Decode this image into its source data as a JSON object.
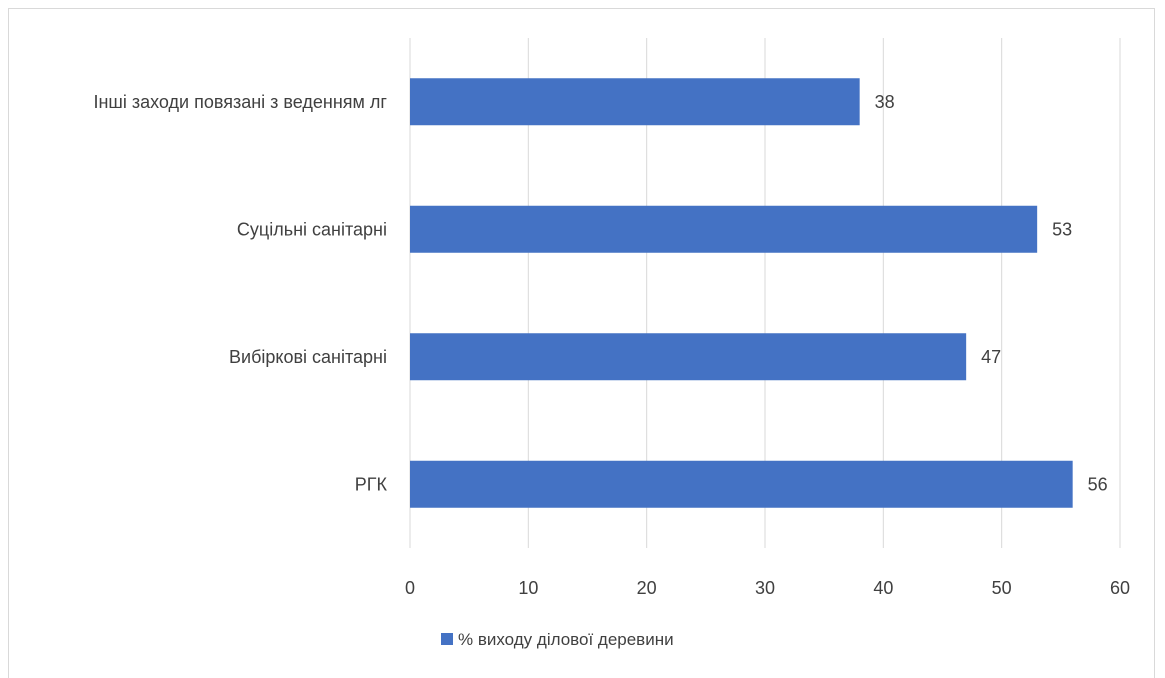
{
  "chart_data": {
    "type": "bar",
    "orientation": "horizontal",
    "categories": [
      "Інші заходи повязані з веденням лг",
      "Суцільні санітарні",
      "Вибіркові санітарні",
      "РГК"
    ],
    "series": [
      {
        "name": "% виходу ділової деревини",
        "values": [
          38,
          53,
          47,
          56
        ]
      }
    ],
    "xlim": [
      0,
      60
    ],
    "x_ticks": [
      0,
      10,
      20,
      30,
      40,
      50,
      60
    ],
    "grid": "vertical",
    "legend_position": "bottom",
    "data_labels": true,
    "colors": {
      "bar": "#4472c4",
      "grid": "#d9d9d9",
      "text": "#404040"
    }
  }
}
